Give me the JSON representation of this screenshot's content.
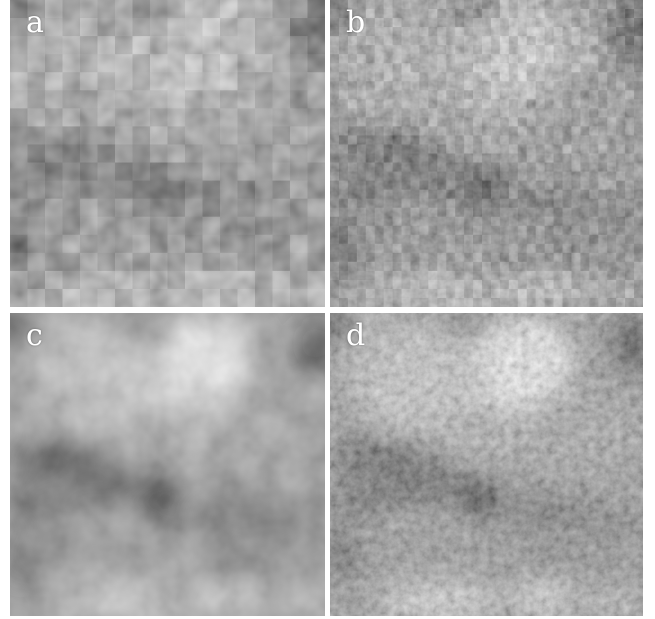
{
  "panels": [
    {
      "id": "a",
      "label": "a",
      "style": "coarse-pixelated"
    },
    {
      "id": "b",
      "label": "b",
      "style": "fine-pixelated"
    },
    {
      "id": "c",
      "label": "c",
      "style": "smooth"
    },
    {
      "id": "d",
      "label": "d",
      "style": "smooth-noisy"
    }
  ],
  "colors": {
    "background": "#ffffff",
    "label": "#ffffff"
  }
}
